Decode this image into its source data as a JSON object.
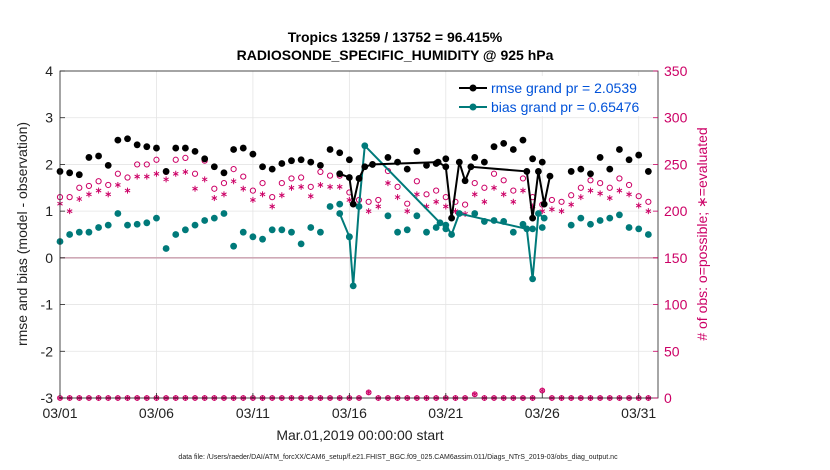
{
  "chart_data": {
    "type": "line",
    "title": "Tropics 13259 / 13752 = 96.415%",
    "subtitle": "RADIOSONDE_SPECIFIC_HUMIDITY @ 925 hPa",
    "xlabel": "Mar.01,2019 00:00:00 start",
    "ylabel": "rmse and bias (model - observation)",
    "ylabel_right": "# of obs: o=possible; ∗=evaluated",
    "footnote": "data file: /Users/raeder/DAI/ATM_forcXX/CAM6_setup/f.e21.FHIST_BGC.f09_025.CAM6assim.011/Diags_NTrS_2019-03/obs_diag_output.nc",
    "xlim": [
      1,
      32
    ],
    "ylim": [
      -3,
      4
    ],
    "ylim_right": [
      0,
      350
    ],
    "xticks": [
      1,
      6,
      11,
      16,
      21,
      26,
      31
    ],
    "xtick_labels": [
      "03/01",
      "03/06",
      "03/11",
      "03/16",
      "03/21",
      "03/26",
      "03/31"
    ],
    "yticks": [
      -3,
      -2,
      -1,
      0,
      1,
      2,
      3,
      4
    ],
    "ytick_labels": [
      "-3",
      "-2",
      "-1",
      "0",
      "1",
      "2",
      "3",
      "4"
    ],
    "yticks_right": [
      0,
      50,
      100,
      150,
      200,
      250,
      300,
      350
    ],
    "ytick_labels_right": [
      "0",
      "50",
      "100",
      "150",
      "200",
      "250",
      "300",
      "350"
    ],
    "legend": [
      "rmse grand pr = 2.0539",
      "bias grand pr = 0.65476"
    ],
    "legend_position": "top-right",
    "colors": {
      "rmse": "#000000",
      "bias": "#007a7a",
      "obs": "#cc0066",
      "zero_line": "#cfa9b6"
    },
    "series": [
      {
        "name": "rmse",
        "x": [
          1,
          1.5,
          2,
          2.5,
          3,
          3.5,
          4,
          4.5,
          5,
          5.5,
          6,
          6.5,
          7,
          7.5,
          8,
          8.5,
          9,
          9.5,
          10,
          10.5,
          11,
          11.5,
          12,
          12.5,
          13,
          13.5,
          14,
          14.5,
          15,
          15.5,
          16,
          16.5,
          17,
          17.5,
          18,
          18.5,
          19,
          19.5,
          20,
          20.5,
          21,
          21.5,
          22,
          22.5,
          23,
          23.5,
          24,
          24.5,
          25,
          25.5,
          26,
          26.5,
          27,
          27.5,
          28,
          28.5,
          29,
          29.5,
          30,
          30.5,
          31,
          31.5
        ],
        "y": [
          1.85,
          1.82,
          1.78,
          2.15,
          2.18,
          1.98,
          2.52,
          2.55,
          2.42,
          2.38,
          2.35,
          1.85,
          2.35,
          2.35,
          2.28,
          2.12,
          1.95,
          1.82,
          2.32,
          2.35,
          2.22,
          1.95,
          1.9,
          2.02,
          2.08,
          2.1,
          2.05,
          1.98,
          2.32,
          2.25,
          2.1,
          null,
          null,
          null,
          2.15,
          2.05,
          1.9,
          2.28,
          1.98,
          2.02,
          2.12,
          null,
          null,
          2.15,
          2.05,
          2.38,
          2.45,
          2.32,
          2.52,
          2.12,
          2.05,
          null,
          null,
          1.85,
          1.9,
          1.8,
          2.15,
          1.9,
          2.32,
          2.1,
          2.2,
          1.85
        ]
      },
      {
        "name": "rmse_connected",
        "x": [
          15.5,
          16,
          16.2,
          16.5,
          16.8,
          17.2,
          20.6,
          21,
          21.3,
          21.7,
          22,
          22.3,
          25.2,
          25.5,
          25.8,
          26.1,
          26.4
        ],
        "y": [
          1.8,
          1.72,
          1.15,
          1.7,
          1.95,
          2.0,
          2.05,
          1.95,
          0.85,
          2.05,
          1.65,
          1.95,
          1.85,
          0.85,
          1.85,
          1.15,
          1.75
        ]
      },
      {
        "name": "bias",
        "x": [
          1,
          1.5,
          2,
          2.5,
          3,
          3.5,
          4,
          4.5,
          5,
          5.5,
          6,
          6.5,
          7,
          7.5,
          8,
          8.5,
          9,
          9.5,
          10,
          10.5,
          11,
          11.5,
          12,
          12.5,
          13,
          13.5,
          14,
          14.5,
          15,
          15.5,
          16,
          16.5,
          17,
          17.5,
          18,
          18.5,
          19,
          19.5,
          20,
          20.5,
          21,
          21.5,
          22,
          22.5,
          23,
          23.5,
          24,
          24.5,
          25,
          25.5,
          26,
          26.5,
          27,
          27.5,
          28,
          28.5,
          29,
          29.5,
          30,
          30.5,
          31,
          31.5
        ],
        "y": [
          0.35,
          0.5,
          0.55,
          0.55,
          0.65,
          0.7,
          0.95,
          0.7,
          0.72,
          0.75,
          0.85,
          0.2,
          0.5,
          0.6,
          0.7,
          0.8,
          0.85,
          0.95,
          0.25,
          0.55,
          0.45,
          0.4,
          0.6,
          0.6,
          0.55,
          0.3,
          0.65,
          0.55,
          1.1,
          1.15,
          0.45,
          null,
          null,
          null,
          0.9,
          0.55,
          0.6,
          0.9,
          0.55,
          0.65,
          0.62,
          null,
          null,
          0.95,
          0.78,
          0.8,
          0.78,
          0.55,
          0.72,
          0.62,
          0.65,
          null,
          null,
          0.7,
          0.85,
          0.72,
          0.8,
          0.85,
          0.92,
          0.65,
          0.62,
          0.5
        ]
      },
      {
        "name": "bias_connected",
        "x": [
          15.5,
          16,
          16.2,
          16.5,
          16.8,
          20.7,
          21,
          21.3,
          21.7,
          25.2,
          25.5,
          25.8,
          26.1
        ],
        "y": [
          0.95,
          0.45,
          -0.6,
          1.1,
          2.4,
          0.75,
          0.7,
          0.5,
          0.95,
          0.62,
          -0.45,
          0.95,
          0.85
        ]
      },
      {
        "name": "obs_possible",
        "x": [
          1,
          1.5,
          2,
          2.5,
          3,
          3.5,
          4,
          4.5,
          5,
          5.5,
          6,
          6.5,
          7,
          7.5,
          8,
          8.5,
          9,
          9.5,
          10,
          10.5,
          11,
          11.5,
          12,
          12.5,
          13,
          13.5,
          14,
          14.5,
          15,
          15.5,
          16,
          16.5,
          17,
          17.5,
          18,
          18.5,
          19,
          19.5,
          20,
          20.5,
          21,
          21.5,
          22,
          22.5,
          23,
          23.5,
          24,
          24.5,
          25,
          25.5,
          26,
          26.5,
          27,
          27.5,
          28,
          28.5,
          29,
          29.5,
          30,
          30.5,
          31,
          31.5
        ],
        "y": [
          215,
          215,
          225,
          227,
          232,
          228,
          240,
          236,
          250,
          250,
          255,
          242,
          255,
          257,
          240,
          254,
          224,
          230,
          245,
          237,
          222,
          230,
          215,
          230,
          235,
          236,
          226,
          242,
          238,
          238,
          220,
          212,
          210,
          212,
          243,
          226,
          208,
          232,
          218,
          222,
          215,
          210,
          207,
          230,
          225,
          240,
          233,
          222,
          235,
          215,
          207,
          212,
          210,
          217,
          225,
          233,
          230,
          225,
          235,
          228,
          216,
          210
        ]
      },
      {
        "name": "obs_evaluated",
        "x": [
          1,
          1.5,
          2,
          2.5,
          3,
          3.5,
          4,
          4.5,
          5,
          5.5,
          6,
          6.5,
          7,
          7.5,
          8,
          8.5,
          9,
          9.5,
          10,
          10.5,
          11,
          11.5,
          12,
          12.5,
          13,
          13.5,
          14,
          14.5,
          15,
          15.5,
          16,
          16.5,
          17,
          17.5,
          18,
          18.5,
          19,
          19.5,
          20,
          20.5,
          21,
          21.5,
          22,
          22.5,
          23,
          23.5,
          24,
          24.5,
          25,
          25.5,
          26,
          26.5,
          27,
          27.5,
          28,
          28.5,
          29,
          29.5,
          30,
          30.5,
          31,
          31.5
        ],
        "y": [
          208,
          200,
          213,
          218,
          222,
          218,
          228,
          222,
          237,
          237,
          240,
          234,
          240,
          242,
          224,
          234,
          214,
          218,
          232,
          224,
          212,
          218,
          205,
          217,
          225,
          226,
          216,
          228,
          226,
          226,
          212,
          205,
          200,
          205,
          230,
          215,
          200,
          218,
          205,
          210,
          205,
          200,
          197,
          218,
          210,
          225,
          218,
          210,
          222,
          205,
          200,
          202,
          200,
          207,
          215,
          222,
          219,
          214,
          222,
          218,
          206,
          200
        ]
      },
      {
        "name": "obs_bottom",
        "x": [
          1,
          1.5,
          2,
          2.5,
          3,
          3.5,
          4,
          4.5,
          5,
          5.5,
          6,
          6.5,
          7,
          7.5,
          8,
          8.5,
          9,
          9.5,
          10,
          10.5,
          11,
          11.5,
          12,
          12.5,
          13,
          13.5,
          14,
          14.5,
          15,
          15.5,
          16,
          16.5,
          17,
          17.5,
          18,
          18.5,
          19,
          19.5,
          20,
          20.5,
          21,
          21.5,
          22,
          22.5,
          23,
          23.5,
          24,
          24.5,
          25,
          25.5,
          26,
          26.5,
          27,
          27.5,
          28,
          28.5,
          29,
          29.5,
          30,
          30.5,
          31,
          31.5
        ],
        "y": [
          0,
          0,
          0,
          0,
          0,
          0,
          0,
          0,
          0,
          0,
          0,
          0,
          0,
          0,
          0,
          0,
          0,
          0,
          0,
          0,
          0,
          0,
          0,
          0,
          0,
          0,
          0,
          0,
          0,
          0,
          0,
          0,
          6,
          0,
          0,
          0,
          0,
          0,
          0,
          0,
          0,
          0,
          0,
          4,
          0,
          0,
          0,
          0,
          0,
          0,
          8,
          0,
          0,
          0,
          0,
          0,
          0,
          0,
          0,
          0,
          0,
          0
        ]
      }
    ]
  }
}
